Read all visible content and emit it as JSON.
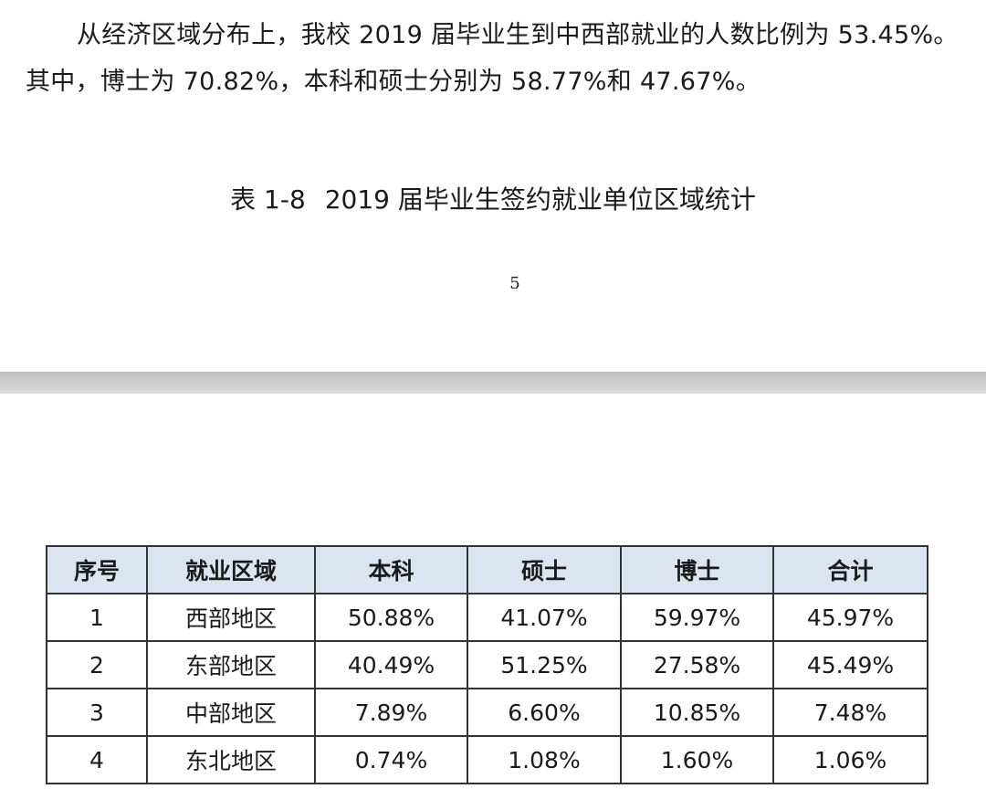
{
  "paragraph": {
    "line1": "从经济区域分布上，我校 2019 届毕业生到中西部就业的人数比例为 53.45%。",
    "line2": "其中，博士为 70.82%，本科和硕士分别为 58.77%和 47.67%。"
  },
  "caption": {
    "number": "表 1-8",
    "title": "2019 届毕业生签约就业单位区域统计"
  },
  "page_number": "5",
  "table": {
    "headers": [
      "序号",
      "就业区域",
      "本科",
      "硕士",
      "博士",
      "合计"
    ],
    "rows": [
      [
        "1",
        "西部地区",
        "50.88%",
        "41.07%",
        "59.97%",
        "45.97%"
      ],
      [
        "2",
        "东部地区",
        "40.49%",
        "51.25%",
        "27.58%",
        "45.49%"
      ],
      [
        "3",
        "中部地区",
        "7.89%",
        "6.60%",
        "10.85%",
        "7.48%"
      ],
      [
        "4",
        "东北地区",
        "0.74%",
        "1.08%",
        "1.60%",
        "1.06%"
      ]
    ]
  },
  "colors": {
    "header_bg": "#dbe5f1",
    "page_gap": "#c9c9c9"
  }
}
